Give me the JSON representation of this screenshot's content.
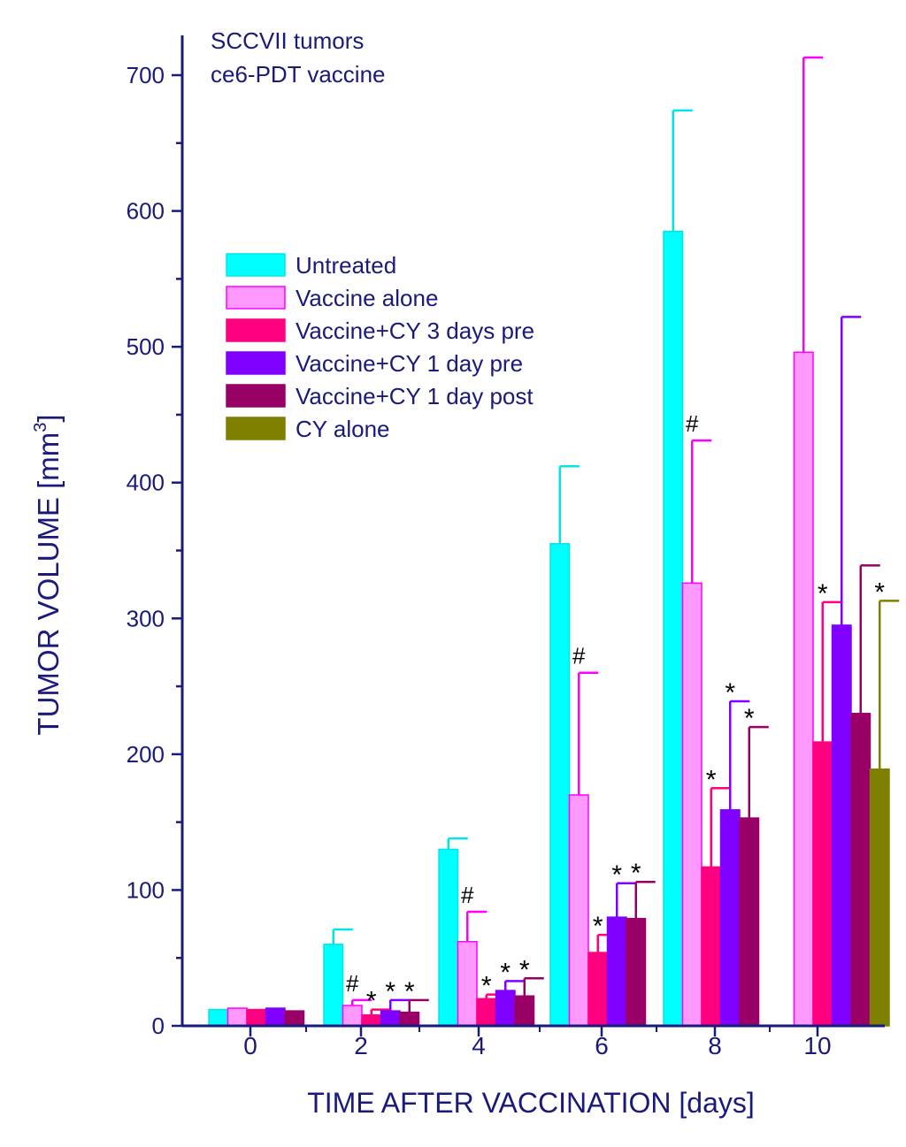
{
  "chart_data": {
    "type": "bar",
    "title_lines": [
      "SCCVII tumors",
      "ce6-PDT vaccine"
    ],
    "xlabel": "TIME AFTER VACCINATION [days]",
    "ylabel": "TUMOR VOLUME [mm",
    "ylabel_sup": "3",
    "ylabel_close": "]",
    "ylim": [
      0,
      720
    ],
    "yticks": [
      0,
      100,
      200,
      300,
      400,
      500,
      600,
      700
    ],
    "categories": [
      "0",
      "2",
      "4",
      "6",
      "8",
      "10"
    ],
    "legend_position": "upper-left",
    "series": [
      {
        "name": "Untreated",
        "color": "#00ffff",
        "outline": "#00e6e6",
        "values": [
          12,
          60,
          130,
          355,
          585,
          null
        ],
        "errors": [
          null,
          11,
          8,
          57,
          89,
          null
        ]
      },
      {
        "name": "Vaccine alone",
        "color": "#ff99ff",
        "outline": "#ff00ff",
        "values": [
          13,
          15,
          62,
          170,
          326,
          496
        ],
        "errors": [
          null,
          4,
          22,
          90,
          105,
          217
        ]
      },
      {
        "name": "Vaccine+CY 3 days pre",
        "color": "#ff0080",
        "outline": "#ff0080",
        "values": [
          12,
          8,
          20,
          54,
          117,
          209
        ],
        "errors": [
          null,
          4,
          3,
          13,
          58,
          103
        ]
      },
      {
        "name": "Vaccine+CY 1 day pre",
        "color": "#8000ff",
        "outline": "#8000ff",
        "values": [
          13,
          11,
          26,
          80,
          159,
          295
        ],
        "errors": [
          null,
          8,
          7,
          25,
          80,
          227
        ]
      },
      {
        "name": "Vaccine+CY 1 day post",
        "color": "#990066",
        "outline": "#990066",
        "values": [
          11,
          10,
          22,
          79,
          153,
          230
        ],
        "errors": [
          null,
          9,
          13,
          27,
          67,
          109
        ]
      },
      {
        "name": "CY alone",
        "color": "#808000",
        "outline": "#808000",
        "values": [
          null,
          null,
          null,
          null,
          null,
          189
        ],
        "errors": [
          null,
          null,
          null,
          null,
          null,
          124
        ]
      }
    ],
    "annotations": [
      {
        "text": "#",
        "category": 1,
        "series": 1
      },
      {
        "text": "*",
        "category": 1,
        "series": 2
      },
      {
        "text": "*",
        "category": 1,
        "series": 3
      },
      {
        "text": "*",
        "category": 1,
        "series": 4
      },
      {
        "text": "#",
        "category": 2,
        "series": 1
      },
      {
        "text": "*",
        "category": 2,
        "series": 2
      },
      {
        "text": "*",
        "category": 2,
        "series": 3
      },
      {
        "text": "*",
        "category": 2,
        "series": 4
      },
      {
        "text": "#",
        "category": 3,
        "series": 1
      },
      {
        "text": "*",
        "category": 3,
        "series": 2
      },
      {
        "text": "*",
        "category": 3,
        "series": 3
      },
      {
        "text": "*",
        "category": 3,
        "series": 4
      },
      {
        "text": "#",
        "category": 4,
        "series": 1
      },
      {
        "text": "*",
        "category": 4,
        "series": 2
      },
      {
        "text": "*",
        "category": 4,
        "series": 3
      },
      {
        "text": "*",
        "category": 4,
        "series": 4
      },
      {
        "text": "*",
        "category": 5,
        "series": 2
      },
      {
        "text": "*",
        "category": 5,
        "series": 5
      }
    ]
  }
}
